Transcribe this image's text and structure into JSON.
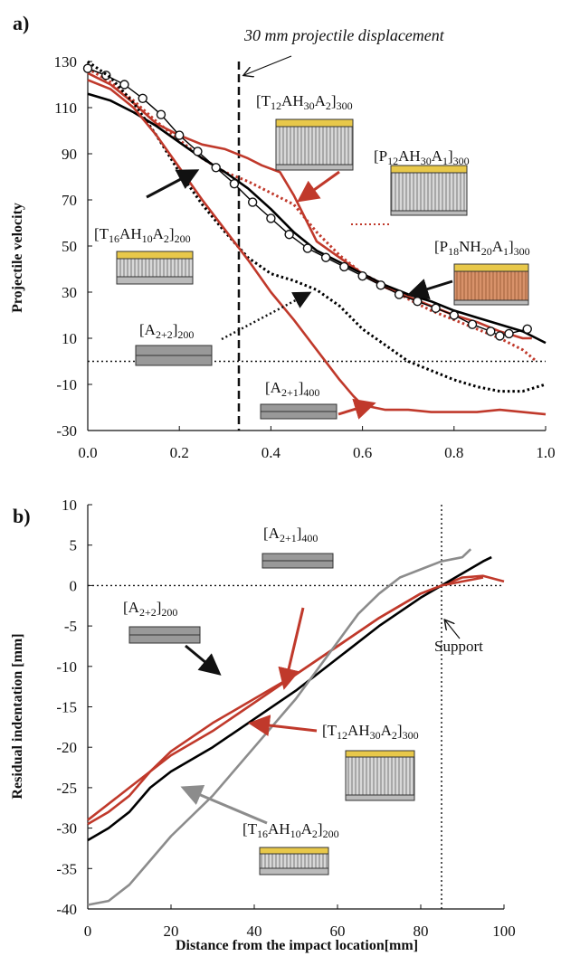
{
  "colors": {
    "black": "#000000",
    "red": "#c0392b",
    "gray": "#8c8c8c",
    "yellow": "#e8c84a",
    "tan": "#d8926a"
  },
  "chart_data": [
    {
      "panel": "a)",
      "type": "line",
      "ylabel": "Projectile velocity",
      "xlabel": "",
      "xlim": [
        0.0,
        1.0
      ],
      "ylim": [
        -30,
        130
      ],
      "xticks": [
        "0.0",
        "0.2",
        "0.4",
        "0.6",
        "0.8",
        "1.0"
      ],
      "yticks": [
        "130",
        "110",
        "90",
        "70",
        "50",
        "30",
        "10",
        "-10",
        "-30"
      ],
      "vline": {
        "x": 0.33,
        "label": "30 mm projectile displacement"
      },
      "hline": {
        "y": 0
      },
      "series": [
        {
          "name": "[T12AH30A2]300",
          "color": "#c0392b",
          "style": "solid",
          "x": [
            0.0,
            0.05,
            0.1,
            0.15,
            0.2,
            0.25,
            0.3,
            0.35,
            0.38,
            0.42,
            0.45,
            0.48,
            0.5,
            0.55,
            0.6,
            0.65,
            0.7,
            0.75,
            0.8,
            0.85,
            0.9,
            0.95,
            0.97
          ],
          "y": [
            125,
            120,
            112,
            103,
            98,
            94,
            92,
            88,
            85,
            82,
            72,
            60,
            52,
            45,
            38,
            32,
            28,
            24,
            20,
            17,
            13,
            10,
            10
          ]
        },
        {
          "name": "[P12AH30A1]300",
          "color": "#c0392b",
          "style": "dotted",
          "x": [
            0.0,
            0.05,
            0.1,
            0.15,
            0.2,
            0.25,
            0.3,
            0.35,
            0.4,
            0.45,
            0.5,
            0.55,
            0.6,
            0.65,
            0.7,
            0.75,
            0.8,
            0.85,
            0.9,
            0.95,
            0.98
          ],
          "y": [
            127,
            121,
            113,
            104,
            96,
            88,
            82,
            78,
            73,
            68,
            56,
            46,
            38,
            33,
            27,
            22,
            18,
            14,
            10,
            5,
            0
          ]
        },
        {
          "name": "[P18NH20A1]300",
          "color": "#000000",
          "style": "solid",
          "x": [
            0.0,
            0.05,
            0.1,
            0.15,
            0.2,
            0.25,
            0.3,
            0.35,
            0.4,
            0.45,
            0.5,
            0.55,
            0.6,
            0.65,
            0.7,
            0.75,
            0.8,
            0.85,
            0.9,
            0.95,
            1.0
          ],
          "y": [
            116,
            113,
            108,
            102,
            95,
            88,
            82,
            75,
            66,
            56,
            48,
            43,
            38,
            33,
            29,
            26,
            22,
            19,
            16,
            13,
            8
          ]
        },
        {
          "name": "[T16AH10A2]200",
          "color": "#000000",
          "style": "circles",
          "x": [
            0.0,
            0.04,
            0.08,
            0.12,
            0.16,
            0.2,
            0.24,
            0.28,
            0.32,
            0.36,
            0.4,
            0.44,
            0.48,
            0.52,
            0.56,
            0.6,
            0.64,
            0.68,
            0.72,
            0.76,
            0.8,
            0.84,
            0.88,
            0.9,
            0.92,
            0.96
          ],
          "y": [
            127,
            124,
            120,
            114,
            107,
            98,
            91,
            84,
            77,
            69,
            62,
            55,
            49,
            45,
            41,
            37,
            33,
            29,
            26,
            23,
            20,
            16,
            13,
            11,
            12,
            14
          ]
        },
        {
          "name": "[A2+2]200",
          "color": "#000000",
          "style": "dotted",
          "x": [
            0.0,
            0.05,
            0.1,
            0.15,
            0.2,
            0.25,
            0.3,
            0.35,
            0.4,
            0.45,
            0.5,
            0.55,
            0.6,
            0.65,
            0.7,
            0.75,
            0.8,
            0.85,
            0.9,
            0.95,
            1.0
          ],
          "y": [
            130,
            123,
            112,
            98,
            82,
            68,
            56,
            45,
            38,
            35,
            31,
            24,
            14,
            7,
            0,
            -4,
            -8,
            -11,
            -13,
            -13,
            -10
          ]
        },
        {
          "name": "[A2+1]400",
          "color": "#c0392b",
          "style": "solid",
          "x": [
            0.0,
            0.05,
            0.1,
            0.15,
            0.2,
            0.25,
            0.3,
            0.35,
            0.4,
            0.45,
            0.5,
            0.55,
            0.58,
            0.6,
            0.65,
            0.7,
            0.75,
            0.8,
            0.85,
            0.9,
            0.95,
            1.0
          ],
          "y": [
            122,
            118,
            110,
            98,
            84,
            70,
            57,
            44,
            30,
            18,
            5,
            -8,
            -15,
            -19,
            -21,
            -21,
            -22,
            -22,
            -22,
            -21,
            -22,
            -23
          ]
        }
      ],
      "labels": [
        "[T12AH30A2]300",
        "[P12AH30A1]300",
        "[T16AH10A2]200",
        "[P18NH20A1]300",
        "[A2+2]200",
        "[A2+1]400"
      ]
    },
    {
      "panel": "b)",
      "type": "line",
      "ylabel": "Residual indentation [mm]",
      "xlabel": "Distance from the impact location[mm]",
      "xlim": [
        0,
        100
      ],
      "ylim": [
        -40,
        10
      ],
      "xticks": [
        "0",
        "20",
        "40",
        "60",
        "80",
        "100"
      ],
      "yticks": [
        "10",
        "5",
        "0",
        "-5",
        "-10",
        "-15",
        "-20",
        "-25",
        "-30",
        "-35",
        "-40"
      ],
      "vline": {
        "x": 85,
        "label": "Support"
      },
      "hline": {
        "y": 0
      },
      "series": [
        {
          "name": "[A2+1]400",
          "color": "#c0392b",
          "x": [
            0,
            5,
            10,
            15,
            20,
            30,
            40,
            50,
            60,
            70,
            80,
            85,
            90,
            95,
            100
          ],
          "y": [
            -29.5,
            -28,
            -26,
            -23,
            -20.5,
            -17,
            -14,
            -11,
            -7.5,
            -4,
            -1,
            0,
            1,
            1.2,
            0.5
          ]
        },
        {
          "name": "[A2+2]200",
          "color": "#000000",
          "x": [
            0,
            5,
            10,
            15,
            20,
            30,
            40,
            50,
            60,
            70,
            80,
            85,
            90,
            95,
            97
          ],
          "y": [
            -31.5,
            -30,
            -28,
            -25,
            -23,
            -20,
            -16.5,
            -13,
            -9,
            -5,
            -1.5,
            0,
            1.5,
            3,
            3.5
          ]
        },
        {
          "name": "[T12AH30A2]300",
          "color": "#c0392b",
          "x": [
            0,
            10,
            20,
            30,
            40,
            50,
            60,
            70,
            80,
            85,
            90,
            95
          ],
          "y": [
            -29,
            -25,
            -21,
            -18,
            -14.5,
            -11,
            -7.5,
            -4,
            -1,
            0,
            0.5,
            1
          ]
        },
        {
          "name": "[T16AH10A2]200",
          "color": "#8c8c8c",
          "x": [
            0,
            5,
            10,
            15,
            20,
            30,
            40,
            50,
            60,
            65,
            70,
            75,
            80,
            85,
            90,
            92
          ],
          "y": [
            -39.5,
            -39,
            -37,
            -34,
            -31,
            -26,
            -20,
            -14,
            -7,
            -3.5,
            -1,
            1,
            2,
            3,
            3.5,
            4.5
          ]
        }
      ],
      "labels": [
        "[A2+1]400",
        "[A2+2]200",
        "Support",
        "[T12AH30A2]300",
        "[T16AH10A2]200"
      ]
    }
  ]
}
